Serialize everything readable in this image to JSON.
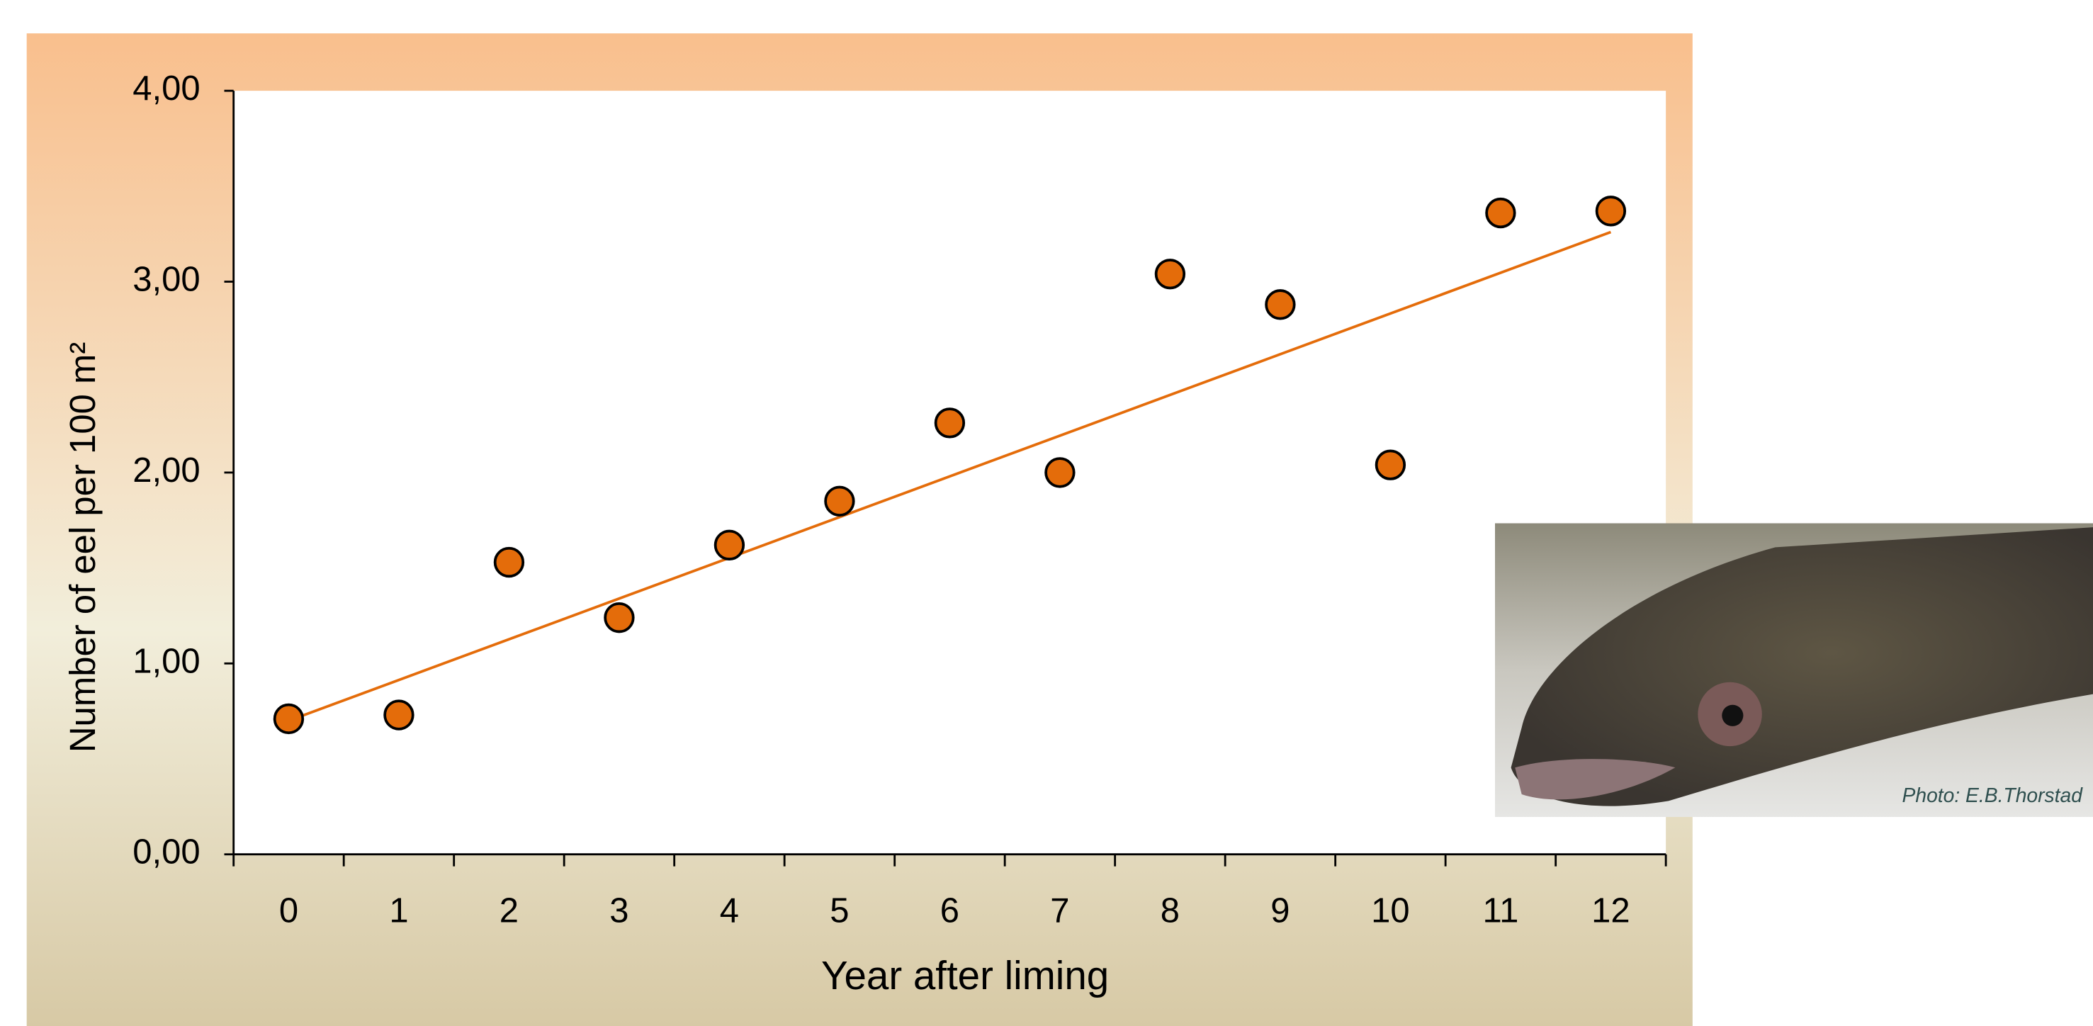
{
  "chart_data": {
    "type": "scatter",
    "x_label": "Year after liming",
    "y_label": "Number of eel per 100 m²",
    "categories": [
      "0",
      "1",
      "2",
      "3",
      "4",
      "5",
      "6",
      "7",
      "8",
      "9",
      "10",
      "11",
      "12"
    ],
    "series": [
      {
        "color": "#e46c0a",
        "values": [
          0.71,
          0.73,
          1.53,
          1.24,
          1.62,
          1.85,
          2.26,
          2.0,
          3.04,
          2.88,
          2.04,
          3.36,
          3.37
        ]
      }
    ],
    "trendline": {
      "color": "#e46c0a",
      "values": [
        0.7,
        3.26
      ]
    },
    "ylim": [
      0,
      4
    ],
    "yticks": [
      {
        "value": 0,
        "label": "0,00"
      },
      {
        "value": 1,
        "label": "1,00"
      },
      {
        "value": 2,
        "label": "2,00"
      },
      {
        "value": 3,
        "label": "3,00"
      },
      {
        "value": 4,
        "label": "4,00"
      }
    ],
    "grid": false
  },
  "photo_credit": "Photo:  E.B.Thorstad"
}
